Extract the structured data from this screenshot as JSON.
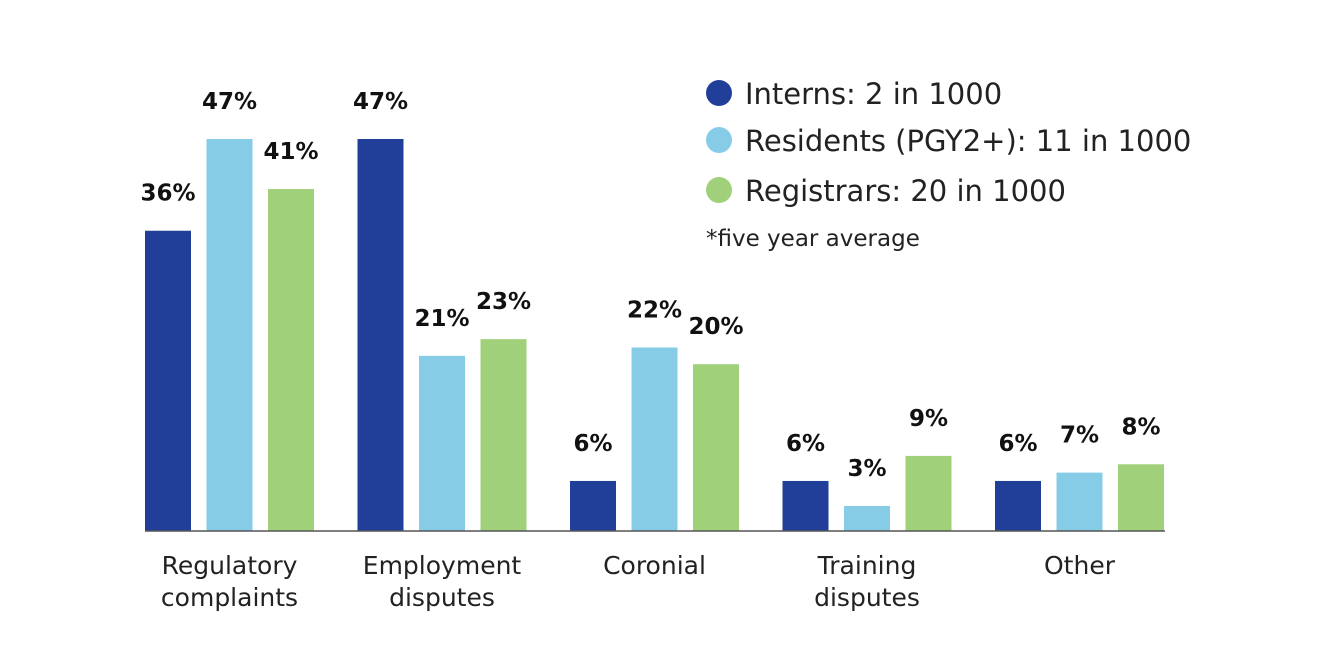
{
  "chart_data": {
    "type": "bar",
    "title": "",
    "xlabel": "",
    "ylabel": "",
    "ylim": [
      0,
      47
    ],
    "grid": false,
    "legend_position": "top-right",
    "categories": [
      [
        "Regulatory",
        "complaints"
      ],
      [
        "Employment",
        "disputes"
      ],
      [
        "Coronial"
      ],
      [
        "Training",
        "disputes"
      ],
      [
        "Other"
      ]
    ],
    "series": [
      {
        "name": "Interns: 2 in 1000",
        "color": "#213f99",
        "values": [
          36,
          47,
          6,
          6,
          6
        ]
      },
      {
        "name": "Residents (PGY2+): 11 in 1000",
        "color": "#87cce6",
        "values": [
          47,
          21,
          22,
          3,
          7
        ]
      },
      {
        "name": "Registrars: 20 in 1000",
        "color": "#a1d07a",
        "values": [
          41,
          23,
          20,
          9,
          8
        ]
      }
    ],
    "value_suffix": "%",
    "footnote": "*five year average"
  }
}
